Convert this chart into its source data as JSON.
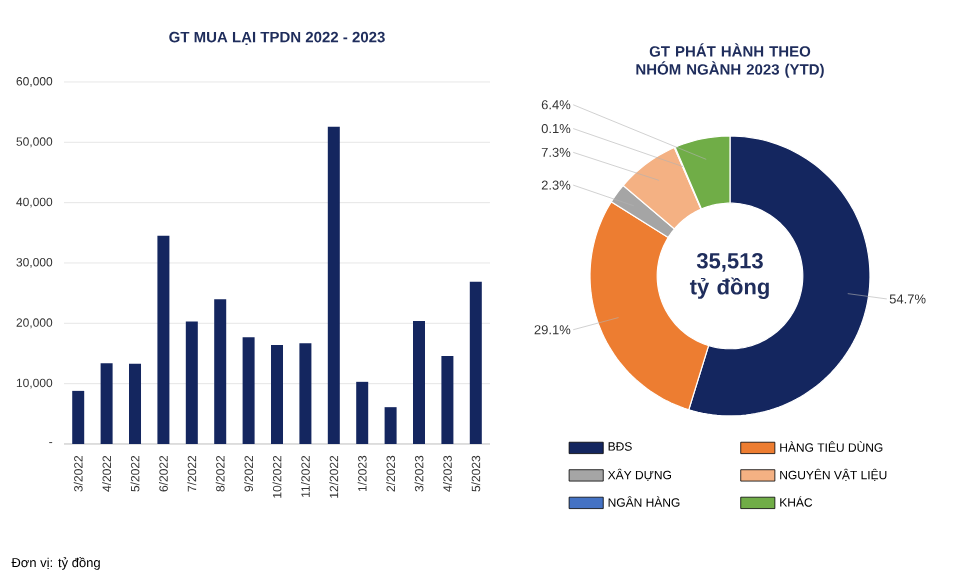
{
  "chart_data": [
    {
      "type": "bar",
      "title": "GT MUA LẠI TPDN 2022 - 2023",
      "categories": [
        "3/2022",
        "4/2022",
        "5/2022",
        "6/2022",
        "7/2022",
        "8/2022",
        "9/2022",
        "10/2022",
        "11/2022",
        "12/2022",
        "1/2023",
        "2/2023",
        "3/2023",
        "4/2023",
        "5/2023"
      ],
      "values": [
        8800,
        13400,
        13300,
        34500,
        20300,
        24000,
        17700,
        16400,
        16700,
        52600,
        10300,
        6100,
        20400,
        14600,
        26900
      ],
      "color": "#14265f",
      "ylim": [
        0,
        60000
      ],
      "yticks": [
        {
          "value": 0,
          "label": "-"
        },
        {
          "value": 10000,
          "label": "10,000"
        },
        {
          "value": 20000,
          "label": "20,000"
        },
        {
          "value": 30000,
          "label": "30,000"
        },
        {
          "value": 40000,
          "label": "40,000"
        },
        {
          "value": 50000,
          "label": "50,000"
        },
        {
          "value": 60000,
          "label": "60,000"
        }
      ],
      "grid": "y",
      "annotations": [
        "Đơn vị: tỷ đồng"
      ]
    },
    {
      "type": "donut",
      "title": "GT PHÁT HÀNH THEO NHÓM NGÀNH 2023 (YTD)",
      "categories": [
        "BĐS",
        "HÀNG TIÊU DÙNG",
        "XÂY DỰNG",
        "NGUYÊN VẬT LIỆU",
        "NGÂN HÀNG",
        "KHÁC"
      ],
      "values": [
        54.7,
        29.1,
        2.3,
        7.3,
        0.1,
        6.4
      ],
      "colors": [
        "#14265f",
        "#ed7d31",
        "#a5a5a5",
        "#f4b183",
        "#4472c4",
        "#70ad47"
      ],
      "value_labels": [
        "54.7%",
        "29.1%",
        "2.3%",
        "7.3%",
        "0.1%",
        "6.4%"
      ],
      "legend": "bottom",
      "annotations": [
        "35,513 tỷ đồng"
      ]
    }
  ]
}
